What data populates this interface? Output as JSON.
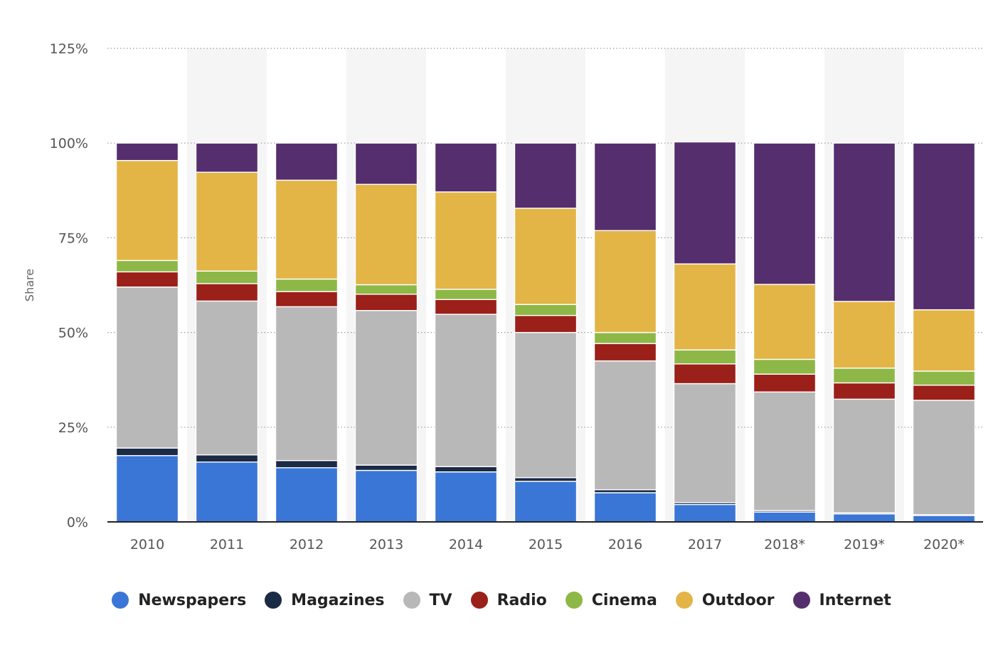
{
  "chart_data": {
    "type": "bar",
    "stacked": true,
    "title": "",
    "xlabel": "",
    "ylabel": "Share",
    "ylim": [
      0,
      125
    ],
    "yticks": [
      0,
      25,
      50,
      75,
      100,
      125
    ],
    "ytick_labels": [
      "0%",
      "25%",
      "50%",
      "75%",
      "100%",
      "125%"
    ],
    "grid": true,
    "legend_position": "bottom",
    "categories": [
      "2010",
      "2011",
      "2012",
      "2013",
      "2014",
      "2015",
      "2016",
      "2017",
      "2018*",
      "2019*",
      "2020*"
    ],
    "series": [
      {
        "name": "Newspapers",
        "color": "#3a76d6",
        "values": [
          17.5,
          15.8,
          14.3,
          13.6,
          13.2,
          10.7,
          7.7,
          4.6,
          2.6,
          2.1,
          1.7
        ]
      },
      {
        "name": "Magazines",
        "color": "#1b2a45",
        "values": [
          2.0,
          1.9,
          1.9,
          1.4,
          1.4,
          1.0,
          0.8,
          0.5,
          0.4,
          0.3,
          0.2
        ]
      },
      {
        "name": "TV",
        "color": "#b8b8b8",
        "values": [
          42.5,
          40.6,
          40.6,
          40.8,
          40.2,
          38.3,
          34.0,
          31.4,
          31.3,
          30.0,
          30.2
        ]
      },
      {
        "name": "Radio",
        "color": "#9a2019",
        "values": [
          4.0,
          4.6,
          4.0,
          4.3,
          3.9,
          4.5,
          4.6,
          5.2,
          4.7,
          4.3,
          4.0
        ]
      },
      {
        "name": "Cinema",
        "color": "#8db847",
        "values": [
          3.0,
          3.3,
          3.3,
          2.5,
          2.7,
          2.9,
          2.9,
          3.7,
          3.9,
          3.9,
          3.7
        ]
      },
      {
        "name": "Outdoor",
        "color": "#e3b547",
        "values": [
          26.4,
          26.1,
          26.1,
          26.5,
          25.7,
          25.4,
          26.9,
          22.7,
          19.8,
          17.6,
          16.2
        ]
      },
      {
        "name": "Internet",
        "color": "#552e6e",
        "values": [
          4.6,
          7.7,
          9.8,
          10.9,
          12.9,
          17.2,
          23.1,
          32.2,
          37.3,
          41.8,
          44.0
        ]
      }
    ]
  }
}
